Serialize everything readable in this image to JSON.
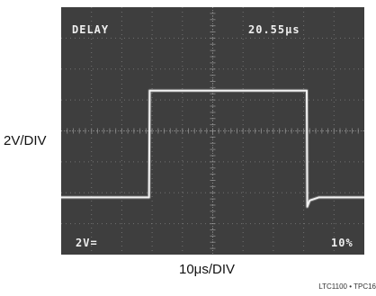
{
  "figure": {
    "ylabel": "2V/DIV",
    "xlabel": "10μs/DIV",
    "ref": "LTC1100 • TPC16"
  },
  "screen": {
    "mode": "DELAY",
    "delay": "20.55μs",
    "vscale": "2V=",
    "trigger": "10%"
  },
  "chart_data": {
    "type": "line",
    "grid": true,
    "grid_divisions": {
      "x": 10,
      "y": 8
    },
    "x_unit": "div",
    "y_unit": "div",
    "xlim": [
      0,
      10
    ],
    "ylim": [
      0,
      8
    ],
    "series": [
      {
        "x": [
          0,
          2.9,
          2.92,
          3.05,
          8.1,
          8.12,
          8.2,
          8.5,
          10
        ],
        "y": [
          1.85,
          1.85,
          5.3,
          5.3,
          5.3,
          1.55,
          1.75,
          1.85,
          1.85
        ]
      }
    ],
    "colors": {
      "screen": "#3e3e3e",
      "grid": "#9a9a9a",
      "trace": "#f2f2f2"
    }
  }
}
